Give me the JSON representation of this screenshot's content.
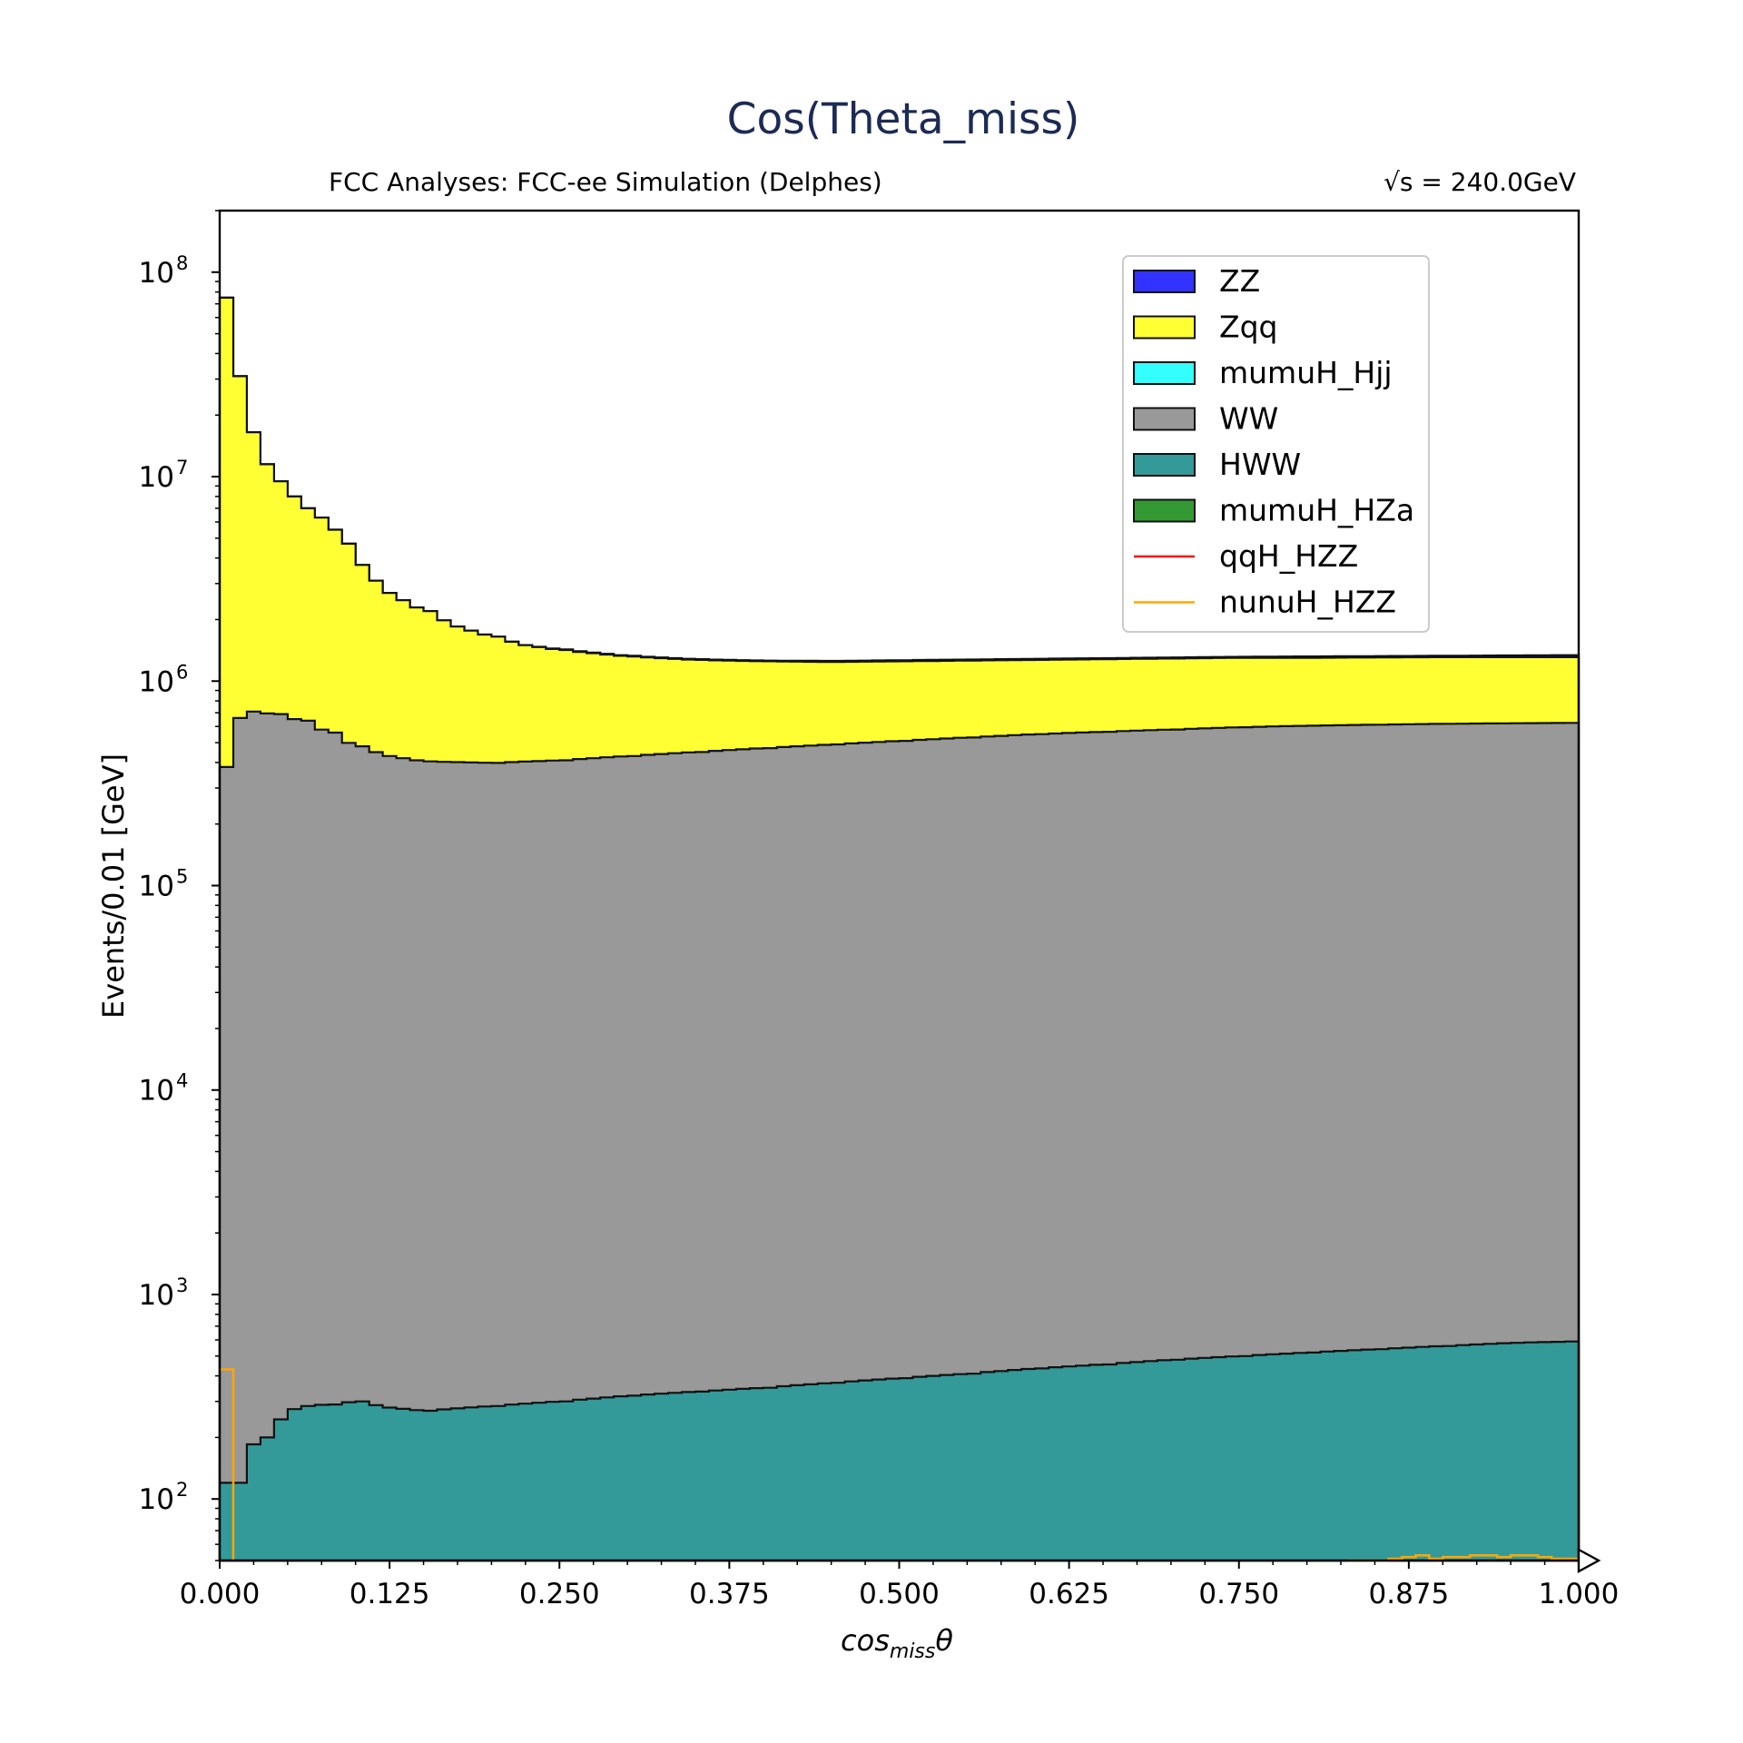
{
  "chart_data": {
    "type": "area",
    "title": "Cos(Theta_miss)",
    "subtitle_left": "FCC Analyses: FCC-ee Simulation (Delphes)",
    "subtitle_right": "√s = 240.0GeV",
    "xlabel": "cos_miss θ",
    "xlabel_main": "cos",
    "xlabel_sub": "miss",
    "xlabel_theta": "θ",
    "ylabel": "Events/0.01 [GeV]",
    "yscale": "log",
    "xlim": [
      0,
      1
    ],
    "ylim": [
      50,
      200000000
    ],
    "bin_width": 0.01,
    "x_ticks": [
      "0.000",
      "0.125",
      "0.250",
      "0.375",
      "0.500",
      "0.625",
      "0.750",
      "0.875",
      "1.000"
    ],
    "y_ticks": [
      {
        "base": "10",
        "exp": "2",
        "value": 100
      },
      {
        "base": "10",
        "exp": "3",
        "value": 1000
      },
      {
        "base": "10",
        "exp": "4",
        "value": 10000
      },
      {
        "base": "10",
        "exp": "5",
        "value": 100000
      },
      {
        "base": "10",
        "exp": "6",
        "value": 1000000
      },
      {
        "base": "10",
        "exp": "7",
        "value": 10000000
      },
      {
        "base": "10",
        "exp": "8",
        "value": 100000000
      }
    ],
    "stacked": true,
    "series_keypoints_note": "cumulative stacked totals at listed x",
    "series": [
      {
        "name": "HWW",
        "color": "#339a99",
        "kind": "fill",
        "keypoints": [
          [
            0.0,
            null
          ],
          [
            0.01,
            120
          ],
          [
            0.02,
            185
          ],
          [
            0.03,
            200
          ],
          [
            0.04,
            245
          ],
          [
            0.05,
            275
          ],
          [
            0.06,
            285
          ],
          [
            0.08,
            290
          ],
          [
            0.1,
            300
          ],
          [
            0.125,
            280
          ],
          [
            0.15,
            270
          ],
          [
            0.2,
            285
          ],
          [
            0.25,
            300
          ],
          [
            0.3,
            320
          ],
          [
            0.35,
            335
          ],
          [
            0.4,
            350
          ],
          [
            0.45,
            370
          ],
          [
            0.5,
            390
          ],
          [
            0.55,
            410
          ],
          [
            0.6,
            435
          ],
          [
            0.65,
            455
          ],
          [
            0.7,
            480
          ],
          [
            0.75,
            500
          ],
          [
            0.8,
            520
          ],
          [
            0.85,
            540
          ],
          [
            0.9,
            560
          ],
          [
            0.95,
            580
          ],
          [
            1.0,
            590
          ]
        ]
      },
      {
        "name": "WW",
        "color": "#999999",
        "kind": "fill",
        "keypoints": [
          [
            0.0,
            380000
          ],
          [
            0.01,
            660000
          ],
          [
            0.02,
            710000
          ],
          [
            0.04,
            690000
          ],
          [
            0.06,
            640000
          ],
          [
            0.08,
            560000
          ],
          [
            0.1,
            480000
          ],
          [
            0.125,
            430000
          ],
          [
            0.15,
            405000
          ],
          [
            0.2,
            398000
          ],
          [
            0.25,
            410000
          ],
          [
            0.3,
            430000
          ],
          [
            0.35,
            450000
          ],
          [
            0.4,
            470000
          ],
          [
            0.45,
            490000
          ],
          [
            0.5,
            510000
          ],
          [
            0.55,
            530000
          ],
          [
            0.6,
            550000
          ],
          [
            0.65,
            565000
          ],
          [
            0.7,
            580000
          ],
          [
            0.75,
            595000
          ],
          [
            0.8,
            605000
          ],
          [
            0.85,
            612000
          ],
          [
            0.9,
            618000
          ],
          [
            0.95,
            622000
          ],
          [
            1.0,
            625000
          ]
        ]
      },
      {
        "name": "Zqq",
        "color": "#ffff33",
        "kind": "fill",
        "keypoints": [
          [
            0.0,
            75000000
          ],
          [
            0.01,
            31000000
          ],
          [
            0.02,
            16500000
          ],
          [
            0.03,
            11500000
          ],
          [
            0.04,
            9500000
          ],
          [
            0.05,
            8000000
          ],
          [
            0.06,
            7000000
          ],
          [
            0.07,
            6300000
          ],
          [
            0.08,
            5500000
          ],
          [
            0.09,
            4700000
          ],
          [
            0.1,
            3700000
          ],
          [
            0.11,
            3100000
          ],
          [
            0.125,
            2700000
          ],
          [
            0.15,
            2200000
          ],
          [
            0.175,
            1850000
          ],
          [
            0.2,
            1650000
          ],
          [
            0.225,
            1500000
          ],
          [
            0.25,
            1420000
          ],
          [
            0.3,
            1320000
          ],
          [
            0.35,
            1270000
          ],
          [
            0.4,
            1250000
          ],
          [
            0.45,
            1240000
          ],
          [
            0.5,
            1250000
          ],
          [
            0.55,
            1260000
          ],
          [
            0.6,
            1270000
          ],
          [
            0.65,
            1280000
          ],
          [
            0.7,
            1290000
          ],
          [
            0.75,
            1300000
          ],
          [
            0.8,
            1300000
          ],
          [
            0.85,
            1305000
          ],
          [
            0.9,
            1310000
          ],
          [
            0.95,
            1310000
          ],
          [
            1.0,
            1310000
          ]
        ]
      },
      {
        "name": "mumuH_HZa",
        "color": "#339933",
        "kind": "fill",
        "keypoints": []
      },
      {
        "name": "mumuH_Hjj",
        "color": "#33ffff",
        "kind": "fill",
        "keypoints": []
      },
      {
        "name": "ZZ",
        "color": "#3333ff",
        "kind": "fill",
        "keypoints": [
          [
            0.0,
            75000000
          ],
          [
            0.01,
            31000000
          ],
          [
            0.02,
            16500000
          ],
          [
            0.03,
            11500000
          ],
          [
            0.04,
            9500000
          ],
          [
            0.05,
            8000000
          ],
          [
            0.06,
            7000000
          ],
          [
            0.07,
            6300000
          ],
          [
            0.08,
            5500000
          ],
          [
            0.09,
            4700000
          ],
          [
            0.1,
            3700000
          ],
          [
            0.11,
            3100000
          ],
          [
            0.125,
            2700000
          ],
          [
            0.15,
            2200000
          ],
          [
            0.175,
            1850000
          ],
          [
            0.2,
            1650000
          ],
          [
            0.225,
            1500000
          ],
          [
            0.25,
            1430000
          ],
          [
            0.3,
            1330000
          ],
          [
            0.35,
            1280000
          ],
          [
            0.4,
            1260000
          ],
          [
            0.45,
            1255000
          ],
          [
            0.5,
            1265000
          ],
          [
            0.55,
            1275000
          ],
          [
            0.6,
            1285000
          ],
          [
            0.65,
            1295000
          ],
          [
            0.7,
            1305000
          ],
          [
            0.75,
            1315000
          ],
          [
            0.8,
            1320000
          ],
          [
            0.85,
            1325000
          ],
          [
            0.9,
            1330000
          ],
          [
            0.95,
            1335000
          ],
          [
            1.0,
            1340000
          ]
        ]
      },
      {
        "name": "qqH_HZZ",
        "color": "#ff0000",
        "kind": "line",
        "keypoints": []
      },
      {
        "name": "nunuH_HZZ",
        "color": "#ffa500",
        "kind": "line",
        "keypoints": [
          [
            0.0,
            430
          ],
          [
            0.84,
            49
          ],
          [
            0.86,
            50
          ],
          [
            0.87,
            51
          ],
          [
            0.88,
            52
          ],
          [
            0.89,
            53
          ],
          [
            0.9,
            51
          ],
          [
            0.91,
            52
          ],
          [
            0.92,
            52
          ],
          [
            0.93,
            53
          ],
          [
            0.94,
            53
          ],
          [
            0.95,
            52
          ],
          [
            0.96,
            53
          ],
          [
            0.97,
            53
          ],
          [
            0.98,
            52
          ],
          [
            0.99,
            51
          ],
          [
            1.0,
            51
          ]
        ]
      }
    ],
    "legend": {
      "placement": "top-right",
      "entries": [
        {
          "name": "ZZ",
          "color": "#3333ff",
          "kind": "fill"
        },
        {
          "name": "Zqq",
          "color": "#ffff33",
          "kind": "fill"
        },
        {
          "name": "mumuH_Hjj",
          "color": "#33ffff",
          "kind": "fill"
        },
        {
          "name": "WW",
          "color": "#999999",
          "kind": "fill"
        },
        {
          "name": "HWW",
          "color": "#339a99",
          "kind": "fill"
        },
        {
          "name": "mumuH_HZa",
          "color": "#339933",
          "kind": "fill"
        },
        {
          "name": "qqH_HZZ",
          "color": "#ff0000",
          "kind": "line"
        },
        {
          "name": "nunuH_HZZ",
          "color": "#ffa500",
          "kind": "line"
        }
      ]
    },
    "grid": false,
    "overflow_arrow": true
  }
}
